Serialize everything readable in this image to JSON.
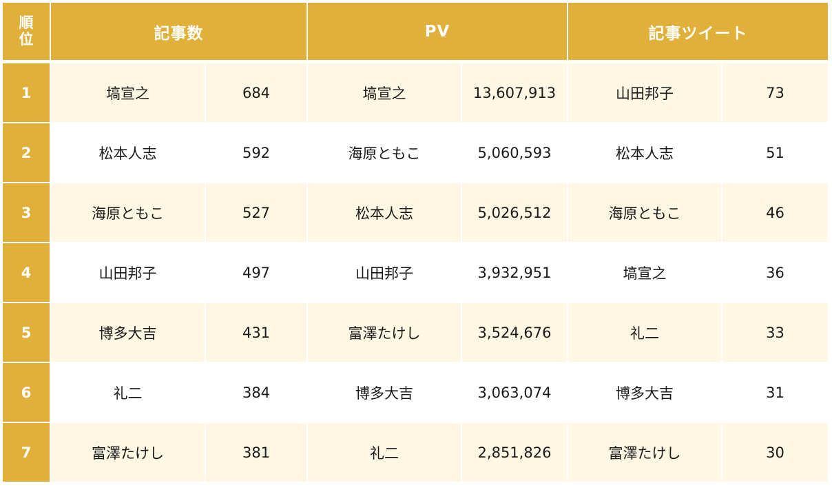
{
  "colors": {
    "header_bg": "#E0B03A",
    "row_alt_bg": "#FEF7E3",
    "row_bg": "#FFFFFF",
    "header_text": "#FFFFFF"
  },
  "header": {
    "rank_line1": "順",
    "rank_line2": "位",
    "group1": "記事数",
    "group2": "PV",
    "group3": "記事ツイート"
  },
  "rows": [
    {
      "rank": "1",
      "articles_name": "塙宣之",
      "articles_value": "684",
      "pv_name": "塙宣之",
      "pv_value": "13,607,913",
      "tweets_name": "山田邦子",
      "tweets_value": "73"
    },
    {
      "rank": "2",
      "articles_name": "松本人志",
      "articles_value": "592",
      "pv_name": "海原ともこ",
      "pv_value": "5,060,593",
      "tweets_name": "松本人志",
      "tweets_value": "51"
    },
    {
      "rank": "3",
      "articles_name": "海原ともこ",
      "articles_value": "527",
      "pv_name": "松本人志",
      "pv_value": "5,026,512",
      "tweets_name": "海原ともこ",
      "tweets_value": "46"
    },
    {
      "rank": "4",
      "articles_name": "山田邦子",
      "articles_value": "497",
      "pv_name": "山田邦子",
      "pv_value": "3,932,951",
      "tweets_name": "塙宣之",
      "tweets_value": "36"
    },
    {
      "rank": "5",
      "articles_name": "博多大吉",
      "articles_value": "431",
      "pv_name": "富澤たけし",
      "pv_value": "3,524,676",
      "tweets_name": "礼二",
      "tweets_value": "33"
    },
    {
      "rank": "6",
      "articles_name": "礼二",
      "articles_value": "384",
      "pv_name": "博多大吉",
      "pv_value": "3,063,074",
      "tweets_name": "博多大吉",
      "tweets_value": "31"
    },
    {
      "rank": "7",
      "articles_name": "富澤たけし",
      "articles_value": "381",
      "pv_name": "礼二",
      "pv_value": "2,851,826",
      "tweets_name": "富澤たけし",
      "tweets_value": "30"
    }
  ]
}
